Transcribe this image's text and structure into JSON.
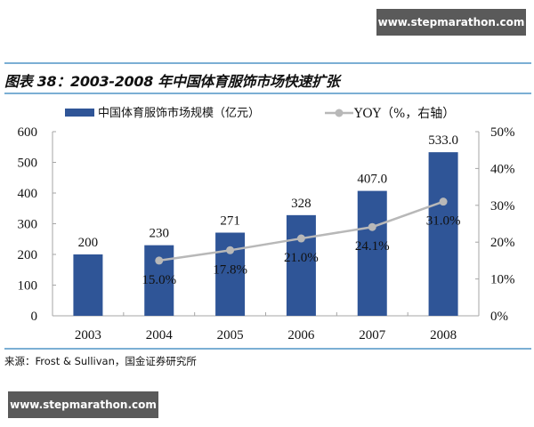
{
  "watermark_top": "www.stepmarathon.com",
  "watermark_bottom": "www.stepmarathon.com",
  "figure_title": "图表 38：2003-2008 年中国体育服饰市场快速扩张",
  "source": "来源：Frost & Sullivan，国金证券研究所",
  "colors": {
    "bar": "#2f5597",
    "line": "#b8b8b8",
    "rule": "#7bafd4",
    "axis": "#a6a6a6"
  },
  "legend": {
    "bar_label": "中国体育服饰市场规模（亿元）",
    "line_label": "YOY（%，右轴）"
  },
  "chart_data": {
    "type": "bar",
    "title": "2003-2008 年中国体育服饰市场快速扩张",
    "categories": [
      "2003",
      "2004",
      "2005",
      "2006",
      "2007",
      "2008"
    ],
    "series": [
      {
        "name": "中国体育服饰市场规模（亿元）",
        "type": "bar",
        "axis": "left",
        "values": [
          200,
          230,
          271,
          328,
          407.0,
          533.0
        ],
        "labels": [
          "200",
          "230",
          "271",
          "328",
          "407.0",
          "533.0"
        ]
      },
      {
        "name": "YOY（%，右轴）",
        "type": "line",
        "axis": "right",
        "values": [
          null,
          15.0,
          17.8,
          21.0,
          24.1,
          31.0
        ],
        "labels": [
          "",
          "15.0%",
          "17.8%",
          "21.0%",
          "24.1%",
          "31.0%"
        ]
      }
    ],
    "left_axis": {
      "ylim": [
        0,
        600
      ],
      "ticks": [
        "0",
        "100",
        "200",
        "300",
        "400",
        "500",
        "600"
      ]
    },
    "right_axis": {
      "ylim": [
        0,
        50
      ],
      "ticks": [
        "0%",
        "10%",
        "20%",
        "30%",
        "40%",
        "50%"
      ]
    },
    "xlabel": "",
    "ylabel": "",
    "grid": false,
    "legend_position": "top"
  }
}
